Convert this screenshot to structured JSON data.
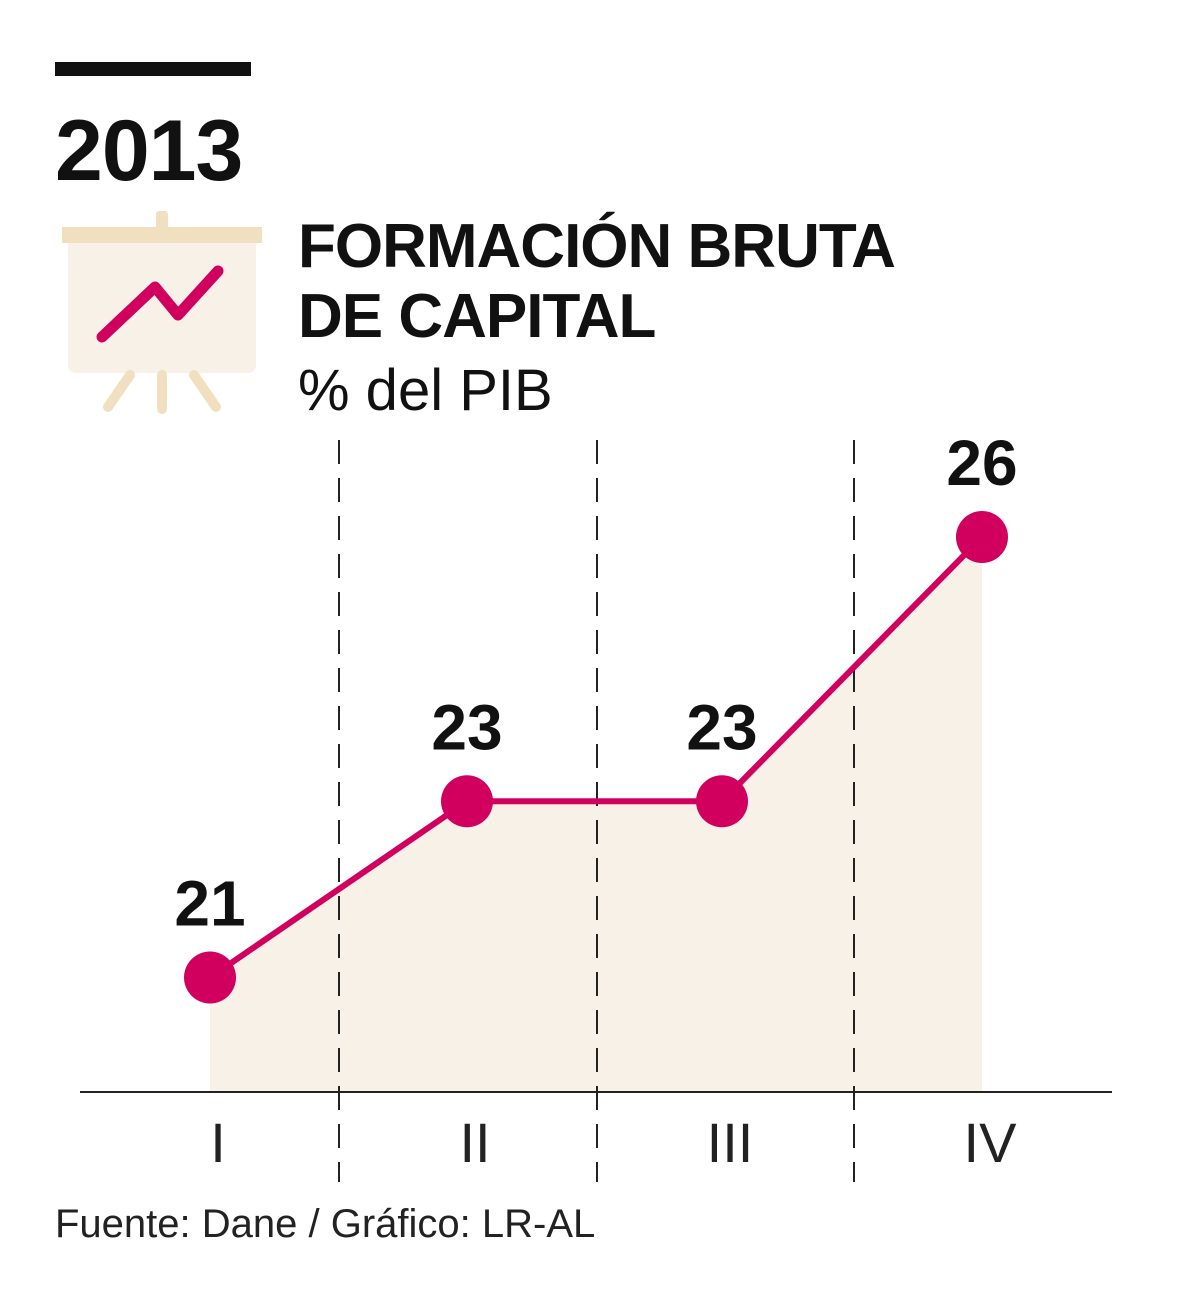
{
  "header": {
    "year": "2013",
    "title_line1": "FORMACIÓN BRUTA",
    "title_line2": "DE CAPITAL",
    "subtitle": "% del PIB"
  },
  "icon": {
    "name": "presentation-chart-icon"
  },
  "colors": {
    "accent": "#d1005f",
    "area_fill": "#f7f1e8",
    "icon_board": "#f7f1e8",
    "icon_frame": "#f1e0c0"
  },
  "chart_data": {
    "type": "area",
    "categories": [
      "I",
      "II",
      "III",
      "IV"
    ],
    "values": [
      21,
      23,
      23,
      26
    ],
    "data_labels": [
      "21",
      "23",
      "23",
      "26"
    ],
    "ylim": [
      19.7,
      26
    ],
    "grid": "vertical dashed separators between categories",
    "legend": "none"
  },
  "footer": {
    "source": "Fuente: Dane / Gráfico: LR-AL"
  }
}
